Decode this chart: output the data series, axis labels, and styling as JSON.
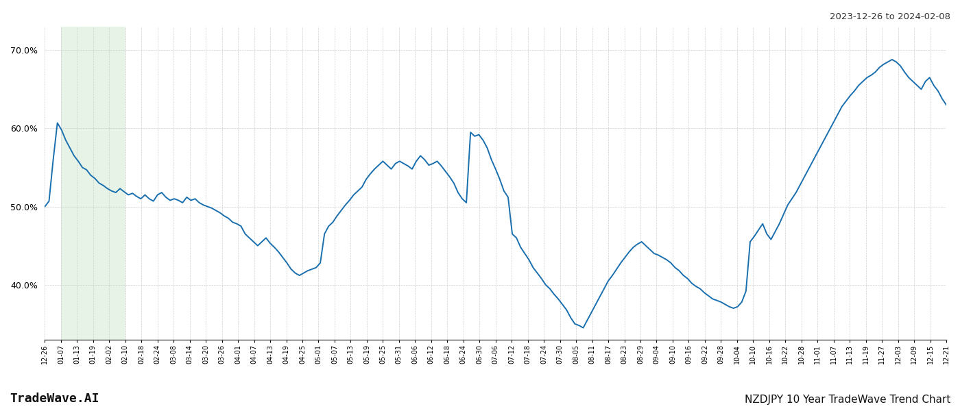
{
  "title_top_right": "2023-12-26 to 2024-02-08",
  "title_bottom_right": "NZDJPY 10 Year TradeWave Trend Chart",
  "title_bottom_left": "TradeWave.AI",
  "line_color": "#1a6faf",
  "bg_color": "#ffffff",
  "grid_color": "#cccccc",
  "shade_color": "#c8e6c9",
  "shade_alpha": 0.45,
  "ylim": [
    0.33,
    0.73
  ],
  "yticks": [
    0.4,
    0.5,
    0.6,
    0.7
  ],
  "x_labels": [
    "12-26",
    "01-07",
    "01-13",
    "01-19",
    "02-02",
    "02-10",
    "02-18",
    "02-24",
    "03-08",
    "03-14",
    "03-20",
    "03-26",
    "04-01",
    "04-07",
    "04-13",
    "04-19",
    "04-25",
    "05-01",
    "05-07",
    "05-13",
    "05-19",
    "05-25",
    "05-31",
    "06-06",
    "06-12",
    "06-18",
    "06-24",
    "06-30",
    "07-06",
    "07-12",
    "07-18",
    "07-24",
    "07-30",
    "08-05",
    "08-11",
    "08-17",
    "08-23",
    "08-29",
    "09-04",
    "09-10",
    "09-16",
    "09-22",
    "09-28",
    "10-04",
    "10-10",
    "10-16",
    "10-22",
    "10-28",
    "11-01",
    "11-07",
    "11-13",
    "11-19",
    "11-27",
    "12-03",
    "12-09",
    "12-15",
    "12-21"
  ],
  "shade_start_label": "01-01",
  "shade_end_label": "02-10",
  "values": [
    0.5,
    0.507,
    0.56,
    0.607,
    0.598,
    0.585,
    0.575,
    0.565,
    0.558,
    0.55,
    0.547,
    0.54,
    0.536,
    0.53,
    0.527,
    0.523,
    0.52,
    0.518,
    0.523,
    0.519,
    0.515,
    0.517,
    0.513,
    0.51,
    0.515,
    0.51,
    0.507,
    0.515,
    0.518,
    0.512,
    0.508,
    0.51,
    0.508,
    0.505,
    0.512,
    0.508,
    0.51,
    0.505,
    0.502,
    0.5,
    0.498,
    0.495,
    0.492,
    0.488,
    0.485,
    0.48,
    0.478,
    0.475,
    0.465,
    0.46,
    0.455,
    0.45,
    0.455,
    0.46,
    0.453,
    0.448,
    0.442,
    0.435,
    0.428,
    0.42,
    0.415,
    0.412,
    0.415,
    0.418,
    0.42,
    0.422,
    0.428,
    0.465,
    0.475,
    0.48,
    0.488,
    0.495,
    0.502,
    0.508,
    0.515,
    0.52,
    0.525,
    0.535,
    0.542,
    0.548,
    0.553,
    0.558,
    0.553,
    0.548,
    0.555,
    0.558,
    0.555,
    0.552,
    0.548,
    0.558,
    0.565,
    0.56,
    0.553,
    0.555,
    0.558,
    0.552,
    0.545,
    0.538,
    0.53,
    0.518,
    0.51,
    0.505,
    0.595,
    0.59,
    0.592,
    0.585,
    0.575,
    0.56,
    0.548,
    0.535,
    0.52,
    0.512,
    0.465,
    0.46,
    0.448,
    0.44,
    0.432,
    0.422,
    0.415,
    0.408,
    0.4,
    0.395,
    0.388,
    0.382,
    0.375,
    0.368,
    0.358,
    0.35,
    0.348,
    0.345,
    0.355,
    0.365,
    0.375,
    0.385,
    0.395,
    0.405,
    0.412,
    0.42,
    0.428,
    0.435,
    0.442,
    0.448,
    0.452,
    0.455,
    0.45,
    0.445,
    0.44,
    0.438,
    0.435,
    0.432,
    0.428,
    0.422,
    0.418,
    0.412,
    0.408,
    0.402,
    0.398,
    0.395,
    0.39,
    0.386,
    0.382,
    0.38,
    0.378,
    0.375,
    0.372,
    0.37,
    0.372,
    0.378,
    0.392,
    0.455,
    0.462,
    0.47,
    0.478,
    0.465,
    0.458,
    0.468,
    0.478,
    0.49,
    0.502,
    0.51,
    0.518,
    0.528,
    0.538,
    0.548,
    0.558,
    0.568,
    0.578,
    0.588,
    0.598,
    0.608,
    0.618,
    0.628,
    0.635,
    0.642,
    0.648,
    0.655,
    0.66,
    0.665,
    0.668,
    0.672,
    0.678,
    0.682,
    0.685,
    0.688,
    0.685,
    0.68,
    0.672,
    0.665,
    0.66,
    0.655,
    0.65,
    0.66,
    0.665,
    0.655,
    0.648,
    0.638,
    0.63
  ]
}
